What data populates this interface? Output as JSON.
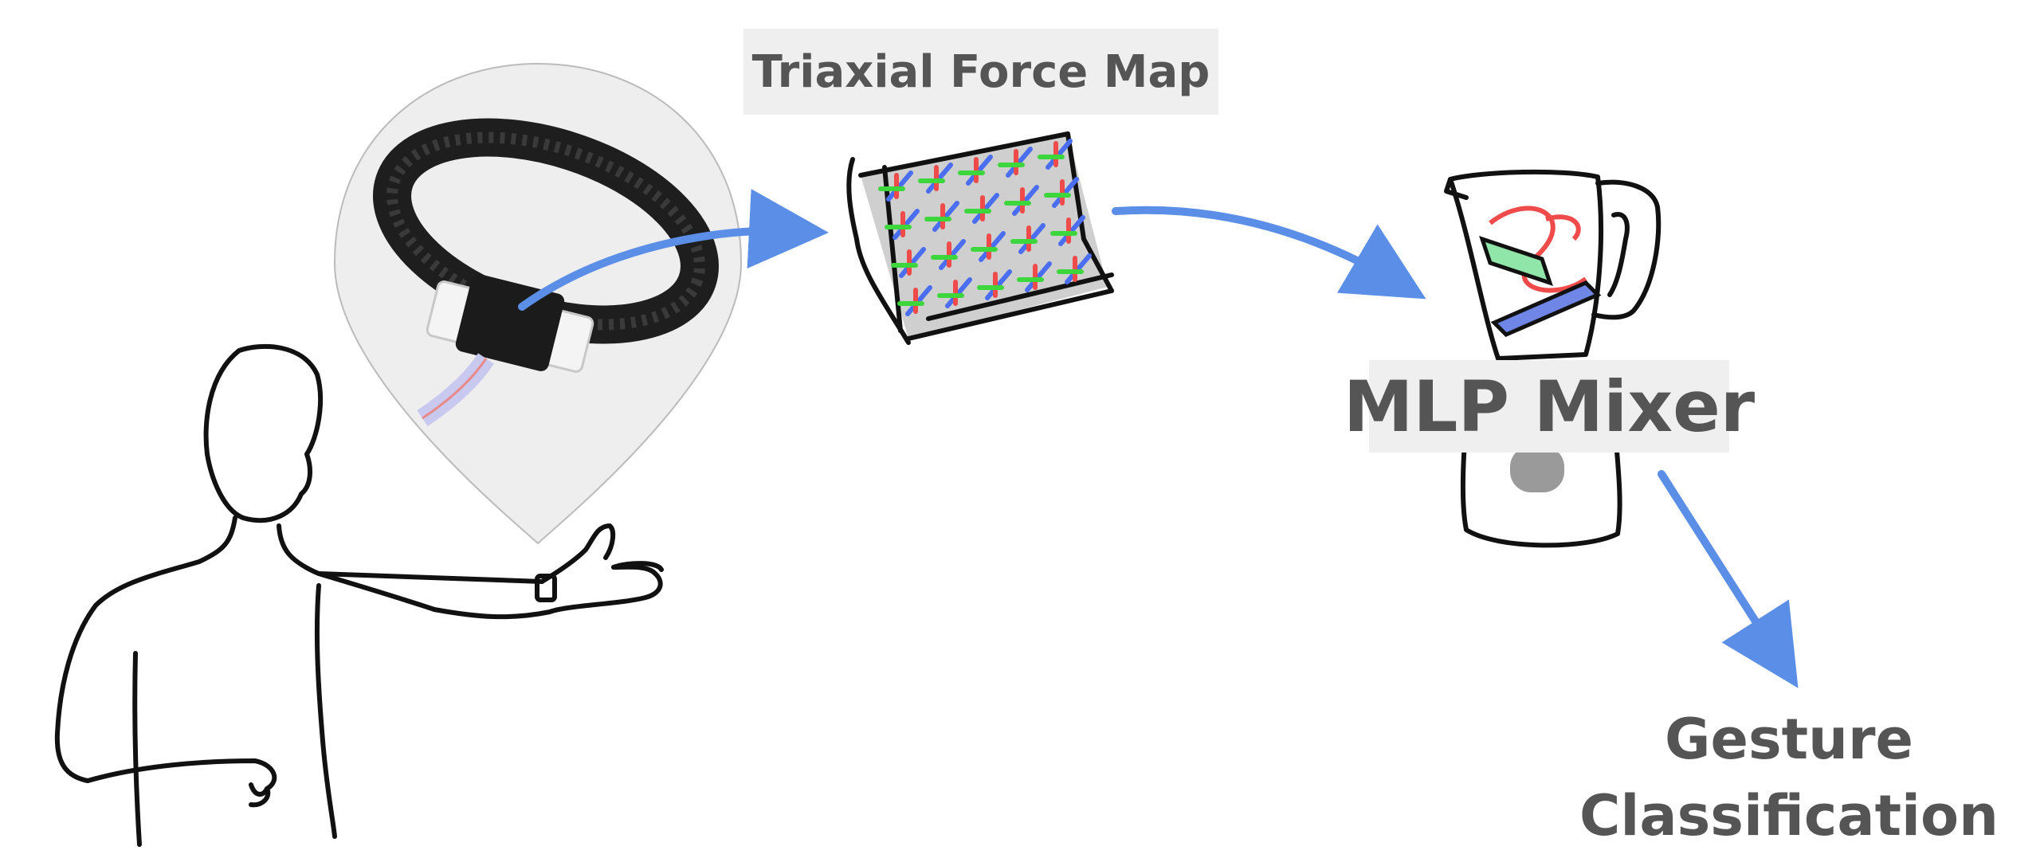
{
  "labels": {
    "force_map": "Triaxial Force Map",
    "model": "MLP Mixer",
    "output_line1": "Gesture",
    "output_line2": "Classification"
  },
  "colors": {
    "flow_arrow": "#5b8ee6",
    "label_text": "#555555",
    "label_bg": "#efefef",
    "x_force": "#ef4b4b",
    "y_force": "#3dd63d",
    "z_force": "#4b6ef0",
    "blade_green": "#8fe6a8",
    "blade_blue": "#6f86e6"
  },
  "icons": {
    "person": "person-thumbs-up-sketch",
    "sensor": "wristband-sensor-photo",
    "force_map": "force-vector-sheet",
    "model": "blender-sketch"
  }
}
